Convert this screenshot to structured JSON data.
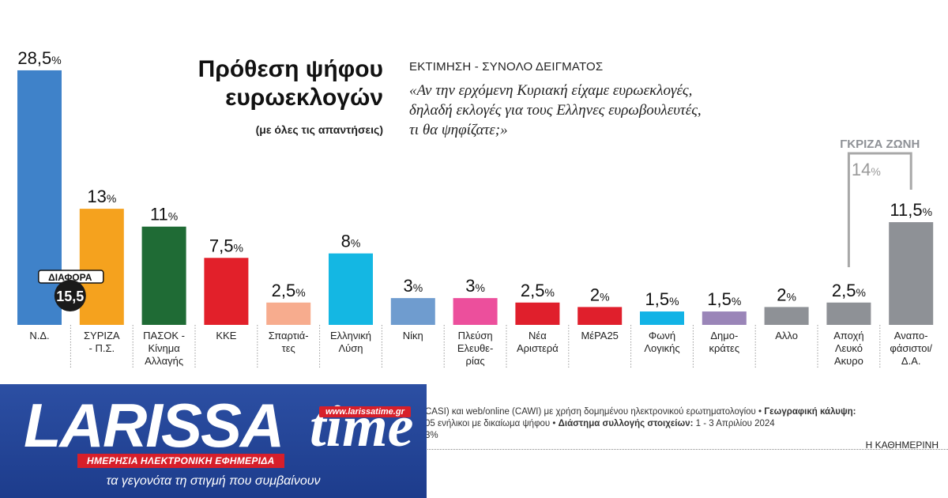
{
  "header": {
    "title_line1": "Πρόθεση ψήφου",
    "title_line2": "ευρωεκλογών",
    "subtitle": "(με όλες τις απαντήσεις)",
    "estimate_label": "ΕΚΤΙΜΗΣΗ - ΣΥΝΟΛΟ ΔΕΙΓΜΑΤΟΣ",
    "question_line1": "«Αν την ερχόμενη Κυριακή είχαμε ευρωεκλογές,",
    "question_line2": "δηλαδή εκλογές για τους Ελληνες ευρωβουλευτές,",
    "question_line3": "τι θα ψηφίζατε;»"
  },
  "chart_data": {
    "type": "bar",
    "title": "Πρόθεση ψήφου ευρωεκλογών",
    "ylim": [
      0,
      30
    ],
    "grid": false,
    "unit": "%",
    "bars": [
      {
        "label": "Ν.Δ.",
        "value": 28.5,
        "value_label": "28,5",
        "color": "#3f82c9"
      },
      {
        "label": "ΣΥΡΙΖΑ - Π.Σ.",
        "value": 13,
        "value_label": "13",
        "color": "#f5a21e"
      },
      {
        "label": "ΠΑΣΟΚ - Κίνημα Αλλαγής",
        "value": 11,
        "value_label": "11",
        "color": "#1f6b35"
      },
      {
        "label": "ΚΚΕ",
        "value": 7.5,
        "value_label": "7,5",
        "color": "#e2202a"
      },
      {
        "label": "Σπαρτιάτες",
        "value": 2.5,
        "value_label": "2,5",
        "color": "#f7ac8e"
      },
      {
        "label": "Ελληνική Λύση",
        "value": 8,
        "value_label": "8",
        "color": "#14b7e3"
      },
      {
        "label": "Νίκη",
        "value": 3,
        "value_label": "3",
        "color": "#6f9ccf"
      },
      {
        "label": "Πλεύση Ελευθερίας",
        "value": 3,
        "value_label": "3",
        "color": "#ec4f9c"
      },
      {
        "label": "Νέα Αριστερά",
        "value": 2.5,
        "value_label": "2,5",
        "color": "#e01f2c"
      },
      {
        "label": "ΜέΡΑ25",
        "value": 2,
        "value_label": "2",
        "color": "#e01f2c"
      },
      {
        "label": "Φωνή Λογικής",
        "value": 1.5,
        "value_label": "1,5",
        "color": "#12b3e6"
      },
      {
        "label": "Δημοκράτες",
        "value": 1.5,
        "value_label": "1,5",
        "color": "#9a85b8"
      },
      {
        "label": "Αλλο",
        "value": 2,
        "value_label": "2",
        "color": "#8e9196"
      },
      {
        "label": "Αποχή Λευκό Ακυρο",
        "value": 2.5,
        "value_label": "2,5",
        "color": "#8e9196"
      },
      {
        "label": "Αναποφάσιστοι/ Δ.Α.",
        "value": 11.5,
        "value_label": "11,5",
        "color": "#8e9196"
      }
    ],
    "label_lines": [
      [
        "Ν.Δ."
      ],
      [
        "ΣΥΡΙΖΑ",
        "- Π.Σ."
      ],
      [
        "ΠΑΣΟΚ -",
        "Κίνημα",
        "Αλλαγής"
      ],
      [
        "ΚΚΕ"
      ],
      [
        "Σπαρτιά-",
        "τες"
      ],
      [
        "Ελληνική",
        "Λύση"
      ],
      [
        "Νίκη"
      ],
      [
        "Πλεύση",
        "Ελευθε-",
        "ρίας"
      ],
      [
        "Νέα",
        "Αριστερά"
      ],
      [
        "ΜέΡΑ25"
      ],
      [
        "Φωνή",
        "Λογικής"
      ],
      [
        "Δημο-",
        "κράτες"
      ],
      [
        "Αλλο"
      ],
      [
        "Αποχή",
        "Λευκό",
        "Ακυρο"
      ],
      [
        "Αναπο-",
        "φάσιστοι/",
        "Δ.Α."
      ]
    ],
    "difference": {
      "label": "ΔΙΑΦΟΡΑ",
      "value": "15,5"
    },
    "grey_zone": {
      "label": "ΓΚΡΙΖΑ ΖΩΝΗ",
      "value": 14,
      "value_label": "14"
    }
  },
  "footer": {
    "line1_a": "CASI) και web/online (CAWI) με χρήση δομημένου ηλεκτρονικού ερωτηματολογίου • ",
    "line1_b": "Γεωγραφική κάλυψη:",
    "line2_a": "05 ενήλικοι με δικαίωμα ψήφου • ",
    "line2_b": "Διάστημα συλλογής στοιχείων:",
    "line2_c": " 1 - 3 Απριλίου 2024",
    "line3": " 3%",
    "source": "Η ΚΑΘΗΜΕΡΙΝΗ"
  },
  "banner": {
    "logo_main": "LARISSA",
    "logo_time": "time",
    "url": "www.larissatime.gr",
    "tagline": "ΗΜΕΡΗΣΙΑ ΗΛΕΚΤΡΟΝΙΚΗ ΕΦΗΜΕΡΙΔΑ",
    "slogan": "τα γεγονότα τη στιγμή που συμβαίνουν"
  }
}
